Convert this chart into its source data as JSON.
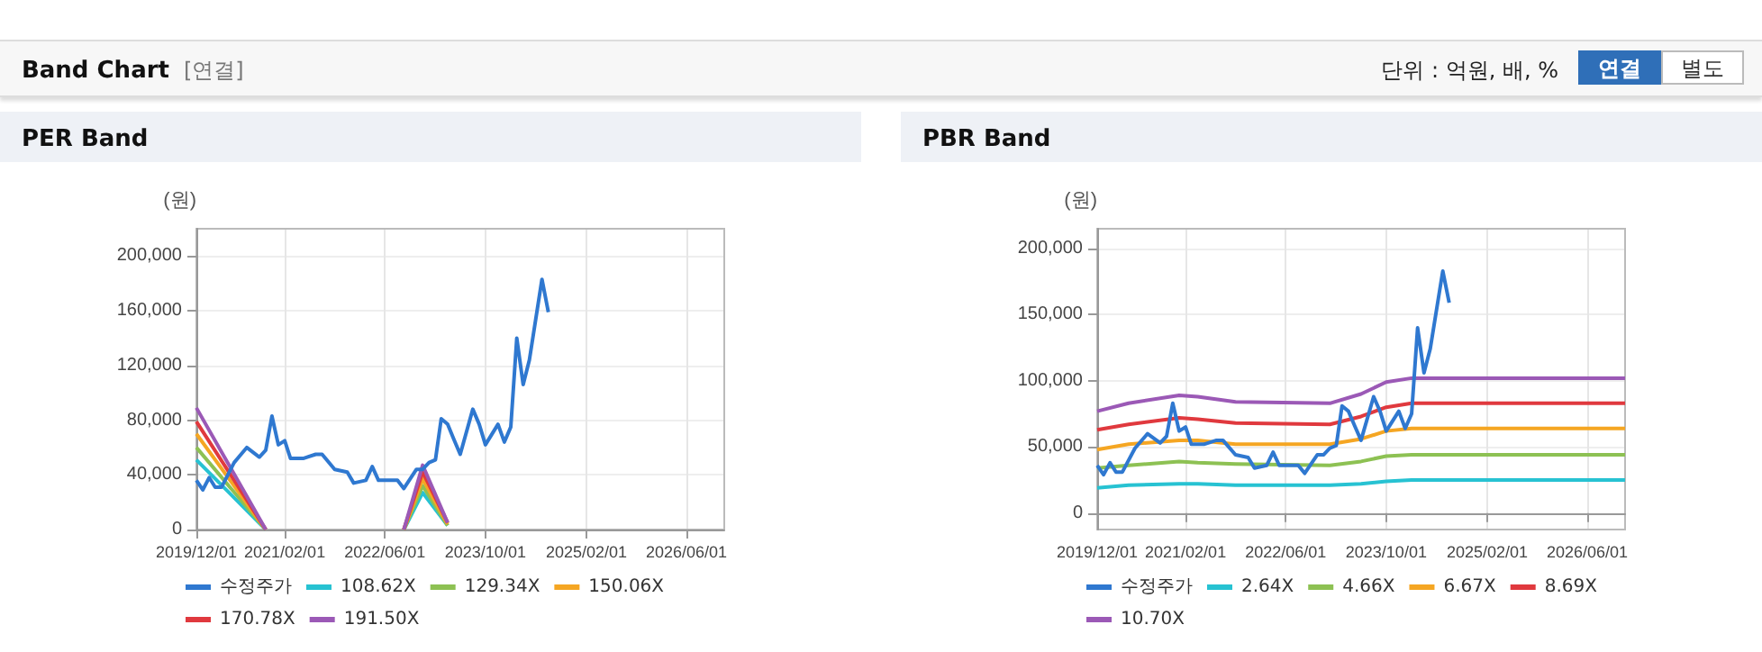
{
  "chart_data": [
    {
      "type": "other",
      "title": "Band Chart",
      "annotations": [
        "[연결]",
        "단위 : 억원, 배, %",
        "연결",
        "별도"
      ]
    },
    {
      "type": "line",
      "title": "PER Band",
      "ylabel": "(원)",
      "legend": "bottom",
      "grid": true,
      "marker": "none",
      "xlim": [
        "2019-12-01",
        "2026-12-01"
      ],
      "xticks": [
        {
          "value": "2019-12-01",
          "label": "2019/12/01"
        },
        {
          "value": "2021-02-01",
          "label": "2021/02/01"
        },
        {
          "value": "2022-06-01",
          "label": "2022/06/01"
        },
        {
          "value": "2023-10-01",
          "label": "2023/10/01"
        },
        {
          "value": "2025-02-01",
          "label": "2025/02/01"
        },
        {
          "value": "2026-06-01",
          "label": "2026/06/01"
        }
      ],
      "ylim": [
        0,
        220000
      ],
      "yticks": [
        {
          "value": 0,
          "label": "0"
        },
        {
          "value": 40000,
          "label": "40,000"
        },
        {
          "value": 80000,
          "label": "80,000"
        },
        {
          "value": 120000,
          "label": "120,000"
        },
        {
          "value": 160000,
          "label": "160,000"
        },
        {
          "value": 200000,
          "label": "200,000"
        }
      ],
      "x": [
        "2019-12",
        "2020-01",
        "2020-02",
        "2020-03",
        "2020-04",
        "2020-06",
        "2020-08",
        "2020-10",
        "2020-11",
        "2020-12",
        "2021-01",
        "2021-02",
        "2021-03",
        "2021-05",
        "2021-07",
        "2021-08",
        "2021-10",
        "2021-12",
        "2022-01",
        "2022-03",
        "2022-04",
        "2022-05",
        "2022-08",
        "2022-09",
        "2022-11",
        "2022-12",
        "2023-01",
        "2023-02",
        "2023-03",
        "2023-04",
        "2023-05",
        "2023-06",
        "2023-08",
        "2023-09",
        "2023-10",
        "2023-12",
        "2024-01",
        "2024-02",
        "2024-03",
        "2024-04",
        "2024-05",
        "2024-07",
        "2024-08"
      ],
      "series": [
        {
          "name": "수정주가",
          "color": "#2f78d0",
          "values": [
            36000,
            29000,
            38000,
            31000,
            31000,
            49000,
            60000,
            53000,
            58000,
            83000,
            62000,
            65000,
            52000,
            52000,
            55000,
            55000,
            44000,
            42000,
            34000,
            36000,
            46000,
            36000,
            36000,
            30000,
            44000,
            44000,
            49000,
            51000,
            81000,
            77000,
            66000,
            55000,
            88000,
            77000,
            62000,
            77000,
            64000,
            75000,
            140000,
            106000,
            124000,
            183000,
            159000
          ]
        },
        {
          "name": "108.62X",
          "color": "#27c2d2",
          "x": [
            "2019-12",
            "2020-11",
            "2020-12",
            "2022-09",
            "2022-12",
            "2023-04"
          ],
          "values": [
            51000,
            0,
            null,
            0,
            27000,
            3000
          ]
        },
        {
          "name": "129.34X",
          "color": "#8dc153",
          "x": [
            "2019-12",
            "2020-11",
            "2020-12",
            "2022-09",
            "2022-12",
            "2023-04"
          ],
          "values": [
            60000,
            0,
            null,
            0,
            32000,
            3000
          ]
        },
        {
          "name": "150.06X",
          "color": "#f5a623",
          "x": [
            "2019-12",
            "2020-11",
            "2020-12",
            "2022-09",
            "2022-12",
            "2023-04"
          ],
          "values": [
            70000,
            0,
            null,
            0,
            37000,
            4000
          ]
        },
        {
          "name": "170.78X",
          "color": "#e0393e",
          "x": [
            "2019-12",
            "2020-11",
            "2020-12",
            "2022-09",
            "2022-12",
            "2023-04"
          ],
          "values": [
            79000,
            0,
            null,
            0,
            42000,
            5000
          ]
        },
        {
          "name": "191.50X",
          "color": "#9b59b6",
          "x": [
            "2019-12",
            "2020-11",
            "2020-12",
            "2022-09",
            "2022-12",
            "2023-04"
          ],
          "values": [
            89000,
            0,
            null,
            0,
            47000,
            5000
          ]
        }
      ]
    },
    {
      "type": "line",
      "title": "PBR Band",
      "ylabel": "(원)",
      "legend": "bottom",
      "grid": true,
      "marker": "none",
      "xlim": [
        "2019-12-01",
        "2026-12-01"
      ],
      "xticks": [
        {
          "value": "2019-12-01",
          "label": "2019/12/01"
        },
        {
          "value": "2021-02-01",
          "label": "2021/02/01"
        },
        {
          "value": "2022-06-01",
          "label": "2022/06/01"
        },
        {
          "value": "2023-10-01",
          "label": "2023/10/01"
        },
        {
          "value": "2025-02-01",
          "label": "2025/02/01"
        },
        {
          "value": "2026-06-01",
          "label": "2026/06/01"
        }
      ],
      "ylim": [
        -12500,
        215000
      ],
      "yticks": [
        {
          "value": 0,
          "label": "0"
        },
        {
          "value": 50000,
          "label": "50,000"
        },
        {
          "value": 100000,
          "label": "100,000"
        },
        {
          "value": 150000,
          "label": "150,000"
        },
        {
          "value": 200000,
          "label": "200,000"
        }
      ],
      "x": [
        "2019-12",
        "2020-01",
        "2020-02",
        "2020-03",
        "2020-04",
        "2020-06",
        "2020-08",
        "2020-10",
        "2020-11",
        "2020-12",
        "2021-01",
        "2021-02",
        "2021-03",
        "2021-05",
        "2021-07",
        "2021-08",
        "2021-10",
        "2021-12",
        "2022-01",
        "2022-03",
        "2022-04",
        "2022-05",
        "2022-08",
        "2022-09",
        "2022-11",
        "2022-12",
        "2023-01",
        "2023-02",
        "2023-03",
        "2023-04",
        "2023-05",
        "2023-06",
        "2023-08",
        "2023-09",
        "2023-10",
        "2023-12",
        "2024-01",
        "2024-02",
        "2024-03",
        "2024-04",
        "2024-05",
        "2024-07",
        "2024-08"
      ],
      "series": [
        {
          "name": "수정주가",
          "color": "#2f78d0",
          "values": [
            36000,
            29000,
            38000,
            31000,
            31000,
            49000,
            60000,
            53000,
            58000,
            83000,
            62000,
            65000,
            52000,
            52000,
            55000,
            55000,
            44000,
            42000,
            34000,
            36000,
            46000,
            36000,
            36000,
            30000,
            44000,
            44000,
            49000,
            51000,
            81000,
            77000,
            66000,
            55000,
            88000,
            77000,
            62000,
            77000,
            64000,
            75000,
            140000,
            106000,
            124000,
            183000,
            159000
          ]
        },
        {
          "name": "2.64X",
          "color": "#27c2d2",
          "x": [
            "2019-12",
            "2020-05",
            "2021-01",
            "2021-04",
            "2021-10",
            "2023-01",
            "2023-06",
            "2023-10",
            "2024-02",
            "2026-12"
          ],
          "values": [
            19000,
            21000,
            22000,
            22000,
            21000,
            21000,
            22000,
            24000,
            25000,
            25000
          ]
        },
        {
          "name": "4.66X",
          "color": "#8dc153",
          "x": [
            "2019-12",
            "2020-05",
            "2021-01",
            "2021-04",
            "2021-10",
            "2023-01",
            "2023-06",
            "2023-10",
            "2024-02",
            "2026-12"
          ],
          "values": [
            34000,
            36000,
            39000,
            38000,
            37000,
            36000,
            39000,
            43000,
            44000,
            44000
          ]
        },
        {
          "name": "6.67X",
          "color": "#f5a623",
          "x": [
            "2019-12",
            "2020-05",
            "2021-01",
            "2021-04",
            "2021-10",
            "2023-01",
            "2023-06",
            "2023-10",
            "2024-02",
            "2026-12"
          ],
          "values": [
            48000,
            52000,
            55000,
            55000,
            52000,
            52000,
            56000,
            62000,
            64000,
            64000
          ]
        },
        {
          "name": "8.69X",
          "color": "#e0393e",
          "x": [
            "2019-12",
            "2020-05",
            "2021-01",
            "2021-04",
            "2021-10",
            "2023-01",
            "2023-06",
            "2023-10",
            "2024-02",
            "2026-12"
          ],
          "values": [
            63000,
            67000,
            72000,
            71000,
            68000,
            67000,
            73000,
            80000,
            83000,
            83000
          ]
        },
        {
          "name": "10.70X",
          "color": "#9b59b6",
          "x": [
            "2019-12",
            "2020-05",
            "2021-01",
            "2021-04",
            "2021-10",
            "2023-01",
            "2023-06",
            "2023-10",
            "2024-02",
            "2026-12"
          ],
          "values": [
            77000,
            83000,
            89000,
            88000,
            84000,
            83000,
            90000,
            99000,
            102000,
            102000
          ]
        }
      ]
    }
  ]
}
